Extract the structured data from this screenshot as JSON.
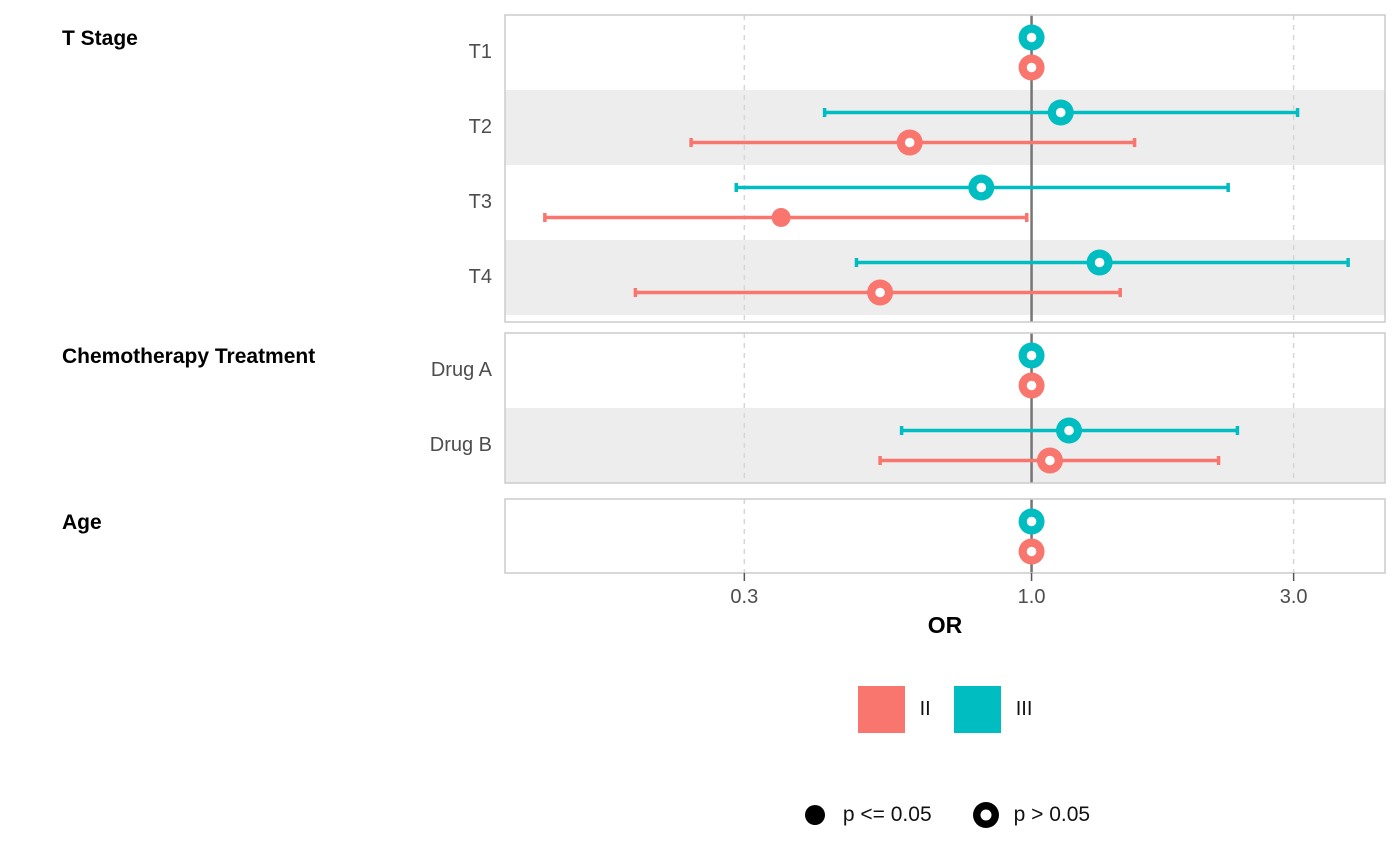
{
  "chart_data": {
    "type": "forest",
    "xlabel": "OR",
    "x_scale": "log10",
    "x_ticks": [
      "0.3",
      "1.0",
      "3.0"
    ],
    "x_tick_values": [
      0.3,
      1.0,
      3.0
    ],
    "x_range": [
      0.11,
      4.4
    ],
    "grid": {
      "dashed_ticks": [
        0.3,
        3.0
      ],
      "solid_reference": 1.0
    },
    "series": [
      {
        "name": "II",
        "color": "#F8766D"
      },
      {
        "name": "III",
        "color": "#00BDC2"
      }
    ],
    "panels": [
      {
        "title": "T Stage",
        "rows": [
          {
            "label": "T1",
            "points": [
              {
                "series": "III",
                "or": 1.0,
                "ci_low": null,
                "ci_high": null,
                "p_le_0_05": false
              },
              {
                "series": "II",
                "or": 1.0,
                "ci_low": null,
                "ci_high": null,
                "p_le_0_05": false
              }
            ]
          },
          {
            "label": "T2",
            "points": [
              {
                "series": "III",
                "or": 1.13,
                "ci_low": 0.42,
                "ci_high": 3.05,
                "p_le_0_05": false
              },
              {
                "series": "II",
                "or": 0.6,
                "ci_low": 0.24,
                "ci_high": 1.54,
                "p_le_0_05": false
              }
            ]
          },
          {
            "label": "T3",
            "points": [
              {
                "series": "III",
                "or": 0.81,
                "ci_low": 0.29,
                "ci_high": 2.28,
                "p_le_0_05": false
              },
              {
                "series": "II",
                "or": 0.35,
                "ci_low": 0.13,
                "ci_high": 0.98,
                "p_le_0_05": true
              }
            ]
          },
          {
            "label": "T4",
            "points": [
              {
                "series": "III",
                "or": 1.33,
                "ci_low": 0.48,
                "ci_high": 3.77,
                "p_le_0_05": false
              },
              {
                "series": "II",
                "or": 0.53,
                "ci_low": 0.19,
                "ci_high": 1.45,
                "p_le_0_05": false
              }
            ]
          }
        ]
      },
      {
        "title": "Chemotherapy Treatment",
        "rows": [
          {
            "label": "Drug A",
            "points": [
              {
                "series": "III",
                "or": 1.0,
                "ci_low": null,
                "ci_high": null,
                "p_le_0_05": false
              },
              {
                "series": "II",
                "or": 1.0,
                "ci_low": null,
                "ci_high": null,
                "p_le_0_05": false
              }
            ]
          },
          {
            "label": "Drug B",
            "points": [
              {
                "series": "III",
                "or": 1.17,
                "ci_low": 0.58,
                "ci_high": 2.37,
                "p_le_0_05": false
              },
              {
                "series": "II",
                "or": 1.08,
                "ci_low": 0.53,
                "ci_high": 2.19,
                "p_le_0_05": false
              }
            ]
          }
        ]
      },
      {
        "title": "Age",
        "rows": [
          {
            "label": "",
            "points": [
              {
                "series": "III",
                "or": 1.0,
                "ci_low": null,
                "ci_high": null,
                "p_le_0_05": false
              },
              {
                "series": "II",
                "or": 1.0,
                "ci_low": null,
                "ci_high": null,
                "p_le_0_05": false
              }
            ]
          }
        ]
      }
    ],
    "legend": {
      "position": "bottom",
      "shape_entries": [
        {
          "shape": "filled-circle",
          "label": "p <= 0.05"
        },
        {
          "shape": "open-circle",
          "label": "p > 0.05"
        }
      ]
    },
    "colors": {
      "stripe": "#EDEDED",
      "panel_border": "#CBCBCB",
      "reference_line": "#757575",
      "gridline": "#D6D6D6",
      "tick_mark": "#555555"
    }
  }
}
